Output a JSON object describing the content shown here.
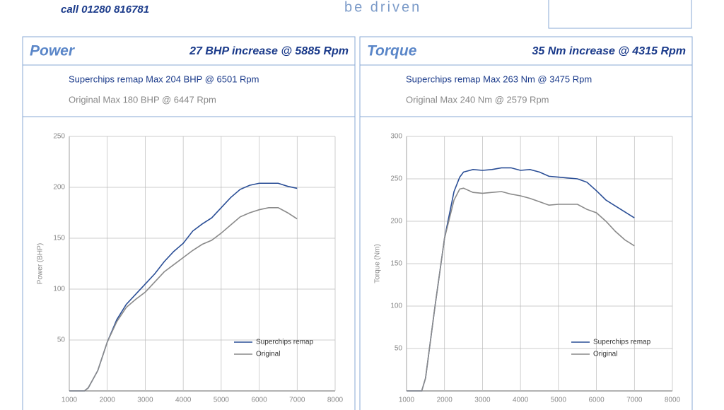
{
  "header": {
    "phone": "call 01280 816781",
    "tagline": "be driven"
  },
  "chart_data": [
    {
      "type": "line",
      "title": "Power",
      "headline": "27 BHP increase @ 5885 Rpm",
      "subtitle": "Superchips remap Max 204 BHP @ 6501 Rpm",
      "subtitle2": "Original Max 180 BHP @ 6447 Rpm",
      "ylabel": "Power (BHP)",
      "xlim": [
        1000,
        8000
      ],
      "ylim": [
        0,
        250
      ],
      "xticks": [
        1000,
        2000,
        3000,
        4000,
        5000,
        6000,
        7000,
        8000
      ],
      "yticks": [
        50,
        100,
        150,
        200,
        250
      ],
      "grid": true,
      "series": [
        {
          "name": "Superchips remap",
          "color": "#2a4e96",
          "x": [
            1000,
            1250,
            1400,
            1500,
            1750,
            2000,
            2250,
            2500,
            2750,
            3000,
            3250,
            3500,
            3750,
            4000,
            4250,
            4500,
            4750,
            5000,
            5250,
            5500,
            5750,
            6000,
            6250,
            6500,
            6750,
            7000
          ],
          "values": [
            0,
            0,
            0,
            3,
            20,
            48,
            70,
            85,
            95,
            105,
            115,
            127,
            137,
            145,
            157,
            164,
            170,
            180,
            190,
            198,
            202,
            204,
            204,
            204,
            201,
            199
          ]
        },
        {
          "name": "Original",
          "color": "#8a8a8a",
          "x": [
            1000,
            1250,
            1400,
            1500,
            1750,
            2000,
            2250,
            2500,
            2750,
            3000,
            3250,
            3500,
            3750,
            4000,
            4250,
            4500,
            4750,
            5000,
            5250,
            5500,
            5750,
            6000,
            6250,
            6500,
            6750,
            7000
          ],
          "values": [
            0,
            0,
            0,
            3,
            20,
            48,
            68,
            82,
            90,
            97,
            107,
            117,
            124,
            131,
            138,
            144,
            148,
            155,
            163,
            171,
            175,
            178,
            180,
            180,
            175,
            169
          ]
        }
      ]
    },
    {
      "type": "line",
      "title": "Torque",
      "headline": "35 Nm increase @ 4315 Rpm",
      "subtitle": "Superchips remap Max 263 Nm @ 3475 Rpm",
      "subtitle2": "Original Max 240 Nm @ 2579 Rpm",
      "ylabel": "Torque (Nm)",
      "xlim": [
        1000,
        8000
      ],
      "ylim": [
        0,
        300
      ],
      "xticks": [
        1000,
        2000,
        3000,
        4000,
        5000,
        6000,
        7000,
        8000
      ],
      "yticks": [
        50,
        100,
        150,
        200,
        250,
        300
      ],
      "grid": true,
      "series": [
        {
          "name": "Superchips remap",
          "color": "#2a4e96",
          "x": [
            1000,
            1400,
            1500,
            1750,
            2000,
            2250,
            2400,
            2500,
            2750,
            3000,
            3250,
            3500,
            3750,
            4000,
            4250,
            4500,
            4750,
            5000,
            5250,
            5500,
            5750,
            6000,
            6250,
            6500,
            6750,
            7000
          ],
          "values": [
            0,
            0,
            15,
            100,
            180,
            235,
            252,
            258,
            261,
            260,
            261,
            263,
            263,
            260,
            261,
            258,
            253,
            252,
            251,
            250,
            246,
            236,
            225,
            218,
            211,
            204
          ]
        },
        {
          "name": "Original",
          "color": "#8a8a8a",
          "x": [
            1000,
            1400,
            1500,
            1750,
            2000,
            2250,
            2400,
            2500,
            2750,
            3000,
            3250,
            3500,
            3750,
            4000,
            4250,
            4500,
            4750,
            5000,
            5250,
            5500,
            5750,
            6000,
            6250,
            6500,
            6750,
            7000
          ],
          "values": [
            0,
            0,
            15,
            100,
            180,
            225,
            238,
            239,
            234,
            233,
            234,
            235,
            232,
            230,
            227,
            223,
            219,
            220,
            220,
            220,
            214,
            210,
            200,
            188,
            178,
            171
          ]
        }
      ]
    }
  ]
}
